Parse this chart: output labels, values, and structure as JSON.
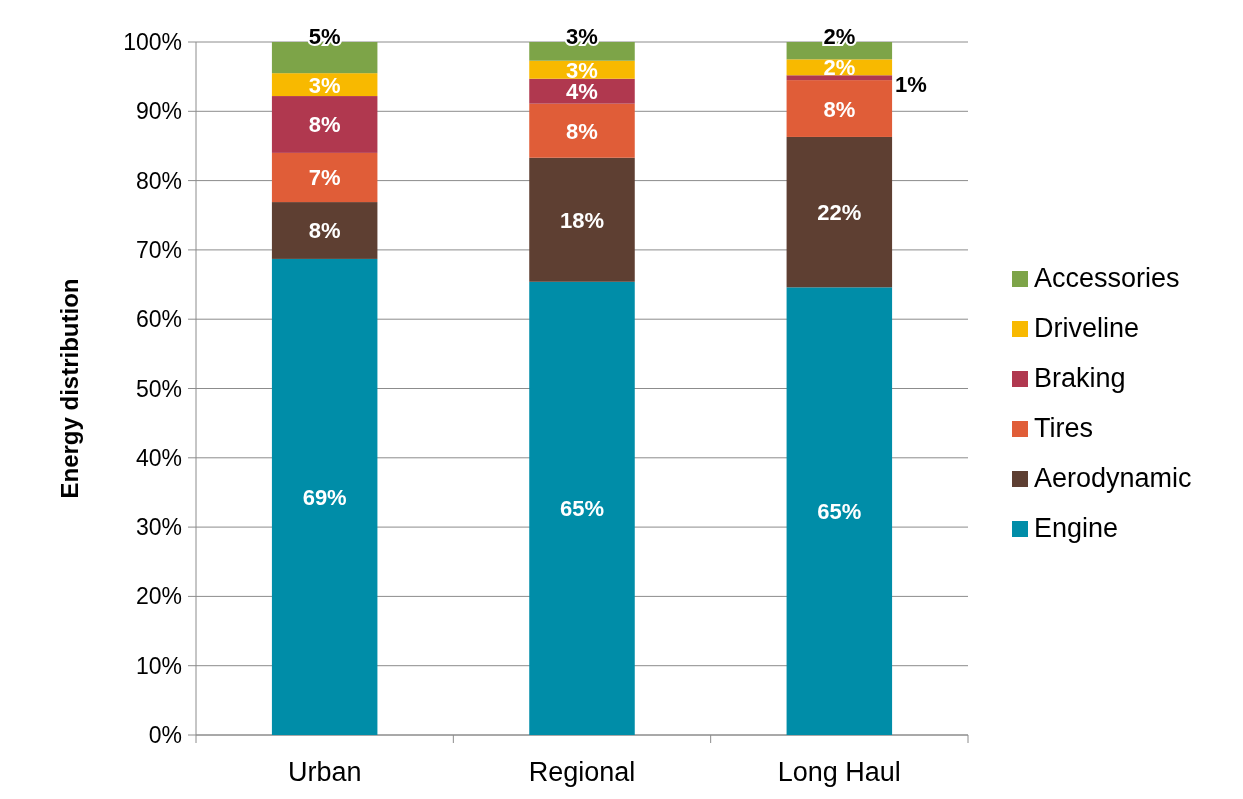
{
  "chart_data": {
    "type": "bar",
    "stacked": true,
    "ylabel": "Energy distribution",
    "categories": [
      "Urban",
      "Regional",
      "Long Haul"
    ],
    "series": [
      {
        "name": "Engine",
        "color": "#008da8",
        "values": [
          68.7,
          65.4,
          64.6
        ],
        "value_labels": [
          "69%",
          "65%",
          "65%"
        ]
      },
      {
        "name": "Aerodynamic",
        "color": "#5e3f32",
        "values": [
          8.2,
          17.9,
          21.7
        ],
        "value_labels": [
          "8%",
          "18%",
          "22%"
        ]
      },
      {
        "name": "Tires",
        "color": "#e05d38",
        "values": [
          7.1,
          7.8,
          8.2
        ],
        "value_labels": [
          "7%",
          "8%",
          "8%"
        ]
      },
      {
        "name": "Braking",
        "color": "#b0384f",
        "values": [
          8.2,
          3.6,
          0.7
        ],
        "value_labels": [
          "8%",
          "4%",
          "1%"
        ]
      },
      {
        "name": "Driveline",
        "color": "#f8b900",
        "values": [
          3.3,
          2.6,
          2.3
        ],
        "value_labels": [
          "3%",
          "3%",
          "2%"
        ]
      },
      {
        "name": "Accessories",
        "color": "#7da448",
        "values": [
          4.5,
          2.7,
          2.5
        ],
        "value_labels": [
          "5%",
          "3%",
          "2%"
        ]
      }
    ],
    "ylim": [
      0,
      100
    ],
    "yticks": [
      {
        "value": 0,
        "label": "0%"
      },
      {
        "value": 10,
        "label": "10%"
      },
      {
        "value": 20,
        "label": "20%"
      },
      {
        "value": 30,
        "label": "30%"
      },
      {
        "value": 40,
        "label": "40%"
      },
      {
        "value": 50,
        "label": "50%"
      },
      {
        "value": 60,
        "label": "60%"
      },
      {
        "value": 70,
        "label": "70%"
      },
      {
        "value": 80,
        "label": "80%"
      },
      {
        "value": 90,
        "label": "90%"
      },
      {
        "value": 100,
        "label": "100%"
      }
    ],
    "grid": "y",
    "legend": "right"
  }
}
